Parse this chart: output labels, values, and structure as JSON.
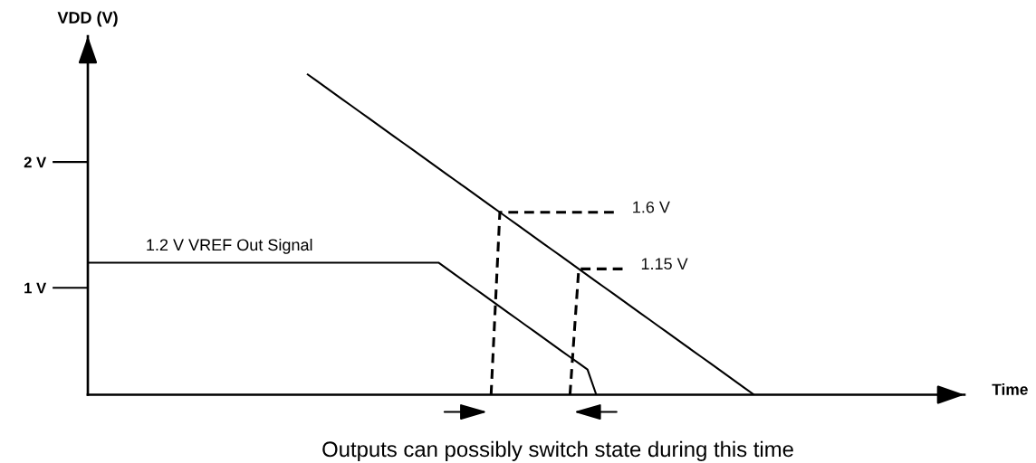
{
  "chart_data": {
    "type": "line",
    "xlabel": "Time",
    "ylabel": "VDD (V)",
    "annotations": [
      "Outputs can possibly switch state during this time"
    ],
    "line_style": "solid",
    "categories": [
      null,
      null,
      null,
      null,
      null,
      null,
      null,
      null,
      null,
      null,
      null,
      null,
      null,
      null,
      null,
      null,
      null,
      null,
      null,
      null,
      null,
      null,
      null,
      null,
      null,
      null,
      null,
      null,
      null,
      null,
      null,
      null,
      null,
      null,
      null,
      null,
      null,
      null,
      null,
      null,
      null,
      null,
      null,
      null,
      null,
      null,
      null,
      null,
      null,
      null,
      null,
      null,
      null,
      null,
      null,
      null,
      null,
      null,
      null,
      null,
      null,
      null,
      null,
      null,
      null,
      null,
      null,
      null,
      null,
      null,
      null,
      null,
      null,
      null,
      null,
      null,
      null,
      null,
      null,
      null,
      null,
      null,
      null,
      null,
      null,
      null,
      null,
      null,
      null,
      null,
      null,
      null,
      null,
      null,
      null,
      null,
      null,
      null,
      null,
      null,
      null
    ],
    "series": [
      {
        "color": "#000000",
        "values": [
          null,
          null,
          null,
          null,
          null,
          null,
          null,
          null,
          null,
          null,
          null,
          null,
          null,
          null,
          null,
          null,
          null,
          null,
          null,
          null,
          null,
          null,
          null,
          null,
          null,
          2.7,
          2.65,
          2.6,
          2.55,
          2.5,
          2.45,
          2.4,
          2.35,
          2.3,
          2.25,
          2.2,
          2.15,
          2.1,
          2.05,
          2.0,
          1.95,
          1.9,
          1.85,
          1.8,
          1.75,
          1.7,
          1.65,
          1.6,
          1.55,
          1.5,
          1.45,
          1.4,
          1.35,
          1.3,
          1.25,
          1.2,
          1.15,
          1.1,
          1.05,
          1.0,
          0.95,
          0.9,
          0.85,
          0.8,
          0.75,
          0.7,
          0.65,
          0.6,
          0.55,
          0.5,
          0.45,
          0.4,
          0.35,
          0.3,
          0.25,
          0.2,
          0.15,
          null,
          null,
          null,
          null,
          null,
          null,
          null,
          null,
          null,
          null,
          null,
          null,
          null,
          null,
          null,
          null,
          null,
          null,
          null,
          null,
          null,
          null,
          null,
          null
        ]
      },
      {
        "name": "1.2 V VREF Out Signal",
        "color": "#000000",
        "values": [
          1.2,
          1.2,
          1.2,
          1.2,
          1.2,
          1.2,
          1.2,
          1.2,
          1.2,
          1.2,
          1.2,
          1.2,
          1.2,
          1.2,
          1.2,
          1.2,
          1.2,
          1.2,
          1.2,
          1.2,
          1.2,
          1.2,
          1.2,
          1.2,
          1.2,
          1.2,
          1.2,
          1.2,
          1.2,
          1.2,
          1.2,
          1.2,
          1.2,
          1.2,
          1.2,
          1.2,
          1.2,
          1.2,
          1.2,
          1.2,
          1.2,
          1.15,
          1.1,
          1.05,
          1.0,
          0.95,
          0.9,
          0.85,
          0.8,
          0.75,
          0.7,
          0.65,
          0.6,
          0.55,
          0.5,
          0.45,
          0.4,
          0.35,
          0.15,
          null,
          null,
          null,
          null,
          null,
          null,
          null,
          null,
          null,
          null,
          null,
          null,
          null,
          null,
          null,
          null,
          null,
          null,
          null,
          null,
          null,
          null,
          null,
          null,
          null,
          null,
          null,
          null,
          null,
          null,
          null,
          null,
          null,
          null,
          null,
          null,
          null,
          null,
          null,
          null,
          null,
          null
        ]
      },
      {
        "color": "#000000",
        "line_style": "dashed",
        "values": [
          null,
          null,
          null,
          null,
          null,
          null,
          null,
          null,
          null,
          null,
          null,
          null,
          null,
          null,
          null,
          null,
          null,
          null,
          null,
          null,
          null,
          null,
          null,
          null,
          null,
          null,
          null,
          null,
          null,
          null,
          null,
          null,
          null,
          null,
          null,
          null,
          null,
          null,
          null,
          null,
          null,
          null,
          null,
          null,
          null,
          null,
          0.15,
          1.6,
          1.6,
          1.6,
          1.6,
          1.6,
          1.6,
          1.6,
          1.6,
          1.6,
          1.6,
          1.6,
          1.6,
          1.6,
          1.6,
          null,
          null,
          null,
          null,
          null,
          null,
          null,
          null,
          null,
          null,
          null,
          null,
          null,
          null,
          null,
          null,
          null,
          null,
          null,
          null,
          null,
          null,
          null,
          null,
          null,
          null,
          null,
          null,
          null,
          null,
          null,
          null,
          null,
          null,
          null,
          null,
          null,
          null,
          null,
          null
        ],
        "value_labels": [
          null,
          null,
          null,
          null,
          null,
          null,
          null,
          null,
          null,
          null,
          null,
          null,
          null,
          null,
          null,
          null,
          null,
          null,
          null,
          null,
          null,
          null,
          null,
          null,
          null,
          null,
          null,
          null,
          null,
          null,
          null,
          null,
          null,
          null,
          null,
          null,
          null,
          null,
          null,
          null,
          null,
          null,
          null,
          null,
          null,
          null,
          null,
          null,
          null,
          null,
          null,
          null,
          null,
          null,
          null,
          null,
          null,
          null,
          null,
          null,
          "1.6 V",
          null,
          null,
          null,
          null,
          null,
          null,
          null,
          null,
          null,
          null,
          null,
          null,
          null,
          null,
          null,
          null,
          null,
          null,
          null,
          null,
          null,
          null,
          null,
          null,
          null,
          null,
          null,
          null,
          null,
          null,
          null,
          null,
          null,
          null,
          null,
          null,
          null,
          null,
          null,
          null
        ]
      },
      {
        "color": "#000000",
        "line_style": "dashed",
        "values": [
          null,
          null,
          null,
          null,
          null,
          null,
          null,
          null,
          null,
          null,
          null,
          null,
          null,
          null,
          null,
          null,
          null,
          null,
          null,
          null,
          null,
          null,
          null,
          null,
          null,
          null,
          null,
          null,
          null,
          null,
          null,
          null,
          null,
          null,
          null,
          null,
          null,
          null,
          null,
          null,
          null,
          null,
          null,
          null,
          null,
          null,
          null,
          null,
          null,
          null,
          null,
          null,
          null,
          null,
          null,
          0.15,
          1.15,
          1.15,
          1.15,
          1.15,
          1.15,
          1.15,
          null,
          null,
          null,
          null,
          null,
          null,
          null,
          null,
          null,
          null,
          null,
          null,
          null,
          null,
          null,
          null,
          null,
          null,
          null,
          null,
          null,
          null,
          null,
          null,
          null,
          null,
          null,
          null,
          null,
          null,
          null,
          null,
          null,
          null,
          null,
          null,
          null,
          null,
          null
        ],
        "value_labels": [
          null,
          null,
          null,
          null,
          null,
          null,
          null,
          null,
          null,
          null,
          null,
          null,
          null,
          null,
          null,
          null,
          null,
          null,
          null,
          null,
          null,
          null,
          null,
          null,
          null,
          null,
          null,
          null,
          null,
          null,
          null,
          null,
          null,
          null,
          null,
          null,
          null,
          null,
          null,
          null,
          null,
          null,
          null,
          null,
          null,
          null,
          null,
          null,
          null,
          null,
          null,
          null,
          null,
          null,
          null,
          null,
          null,
          null,
          null,
          null,
          null,
          "1.15 V",
          null,
          null,
          null,
          null,
          null,
          null,
          null,
          null,
          null,
          null,
          null,
          null,
          null,
          null,
          null,
          null,
          null,
          null,
          null,
          null,
          null,
          null,
          null,
          null,
          null,
          null,
          null,
          null,
          null,
          null,
          null,
          null,
          null,
          null,
          null,
          null,
          null,
          null,
          null
        ]
      }
    ],
    "ylim": [
      0.15,
      3.0
    ],
    "yticks": [
      {
        "value": 1,
        "label": "1 V"
      },
      {
        "value": 2,
        "label": "2 V"
      }
    ],
    "tick_labels": "y"
  }
}
